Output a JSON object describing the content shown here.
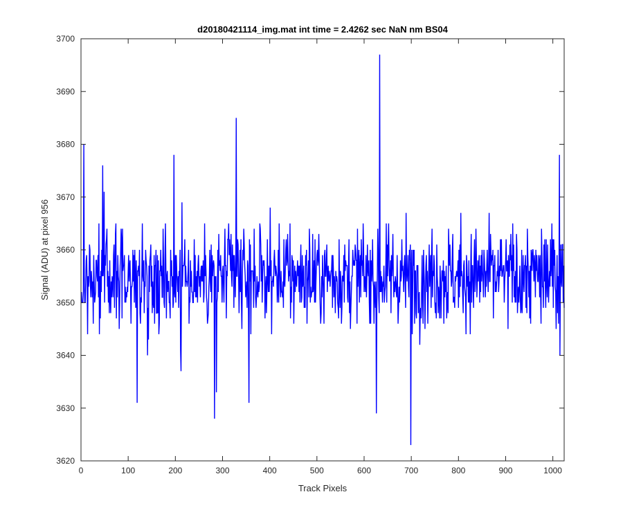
{
  "chart_data": {
    "type": "line",
    "title": "d20180421114_img.mat int time = 2.4262 sec  NaN nm BS04",
    "xlabel": "Track Pixels",
    "ylabel": "Signal (ADU) at pixel 956",
    "xlim": [
      0,
      1024
    ],
    "ylim": [
      3620,
      3700
    ],
    "xticks": [
      0,
      100,
      200,
      300,
      400,
      500,
      600,
      700,
      800,
      900,
      1000
    ],
    "yticks": [
      3620,
      3630,
      3640,
      3650,
      3660,
      3670,
      3680,
      3690,
      3700
    ],
    "grid": false,
    "line_color": "#0000ff",
    "series": [
      {
        "n_points": 1024,
        "mean": 3655,
        "typical_range": [
          3643,
          3667
        ],
        "notable_points": [
          {
            "x": 5,
            "y": 3680
          },
          {
            "x": 45,
            "y": 3676
          },
          {
            "x": 118,
            "y": 3631
          },
          {
            "x": 196,
            "y": 3678
          },
          {
            "x": 211,
            "y": 3637
          },
          {
            "x": 282,
            "y": 3628
          },
          {
            "x": 286,
            "y": 3633
          },
          {
            "x": 328,
            "y": 3685
          },
          {
            "x": 355,
            "y": 3631
          },
          {
            "x": 625,
            "y": 3629
          },
          {
            "x": 632,
            "y": 3697
          },
          {
            "x": 698,
            "y": 3623
          },
          {
            "x": 1013,
            "y": 3678
          },
          {
            "x": 1014,
            "y": 3640
          }
        ]
      }
    ]
  }
}
